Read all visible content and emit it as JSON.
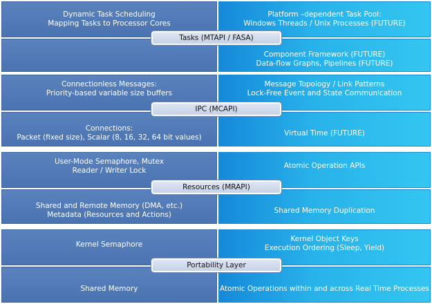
{
  "sections": [
    {
      "label": "Tasks (MTAPI  / FASA)",
      "top_left": [
        "Dynamic Task Scheduling",
        "Mapping Tasks to Processor Cores"
      ],
      "top_right": [
        "Platform –dependent Task Pool:",
        "Windows Threads / Unix Processes (FUTURE)"
      ],
      "bottom_left": [],
      "bottom_right": [
        "Component Framework (FUTURE)",
        "Data-flow Graphs, Pipelines (FUTURE)"
      ]
    },
    {
      "label": "IPC (MCAPI)",
      "top_left": [
        "Connectionless Messages:",
        "Priority-based variable size buffers"
      ],
      "top_right": [
        "Message Topology / Link Patterns",
        "Lock-Free Event and State Communication"
      ],
      "bottom_left": [
        "Connections:",
        "Packet (fixed size), Scalar (8, 16, 32, 64 bit values)"
      ],
      "bottom_right": [
        "Virtual Time (FUTURE)"
      ]
    },
    {
      "label": "Resources (MRAPI)",
      "top_left": [
        "User-Mode Semaphore, Mutex",
        "Reader / Writer Lock"
      ],
      "top_right": [
        "Atomic Operation APIs"
      ],
      "bottom_left": [
        "Shared and Remote Memory (DMA, etc.)",
        "Metadata (Resources and Actions)"
      ],
      "bottom_right": [
        "Shared Memory Duplication"
      ]
    },
    {
      "label": "Portability Layer",
      "top_left": [
        "Kernel Semaphore"
      ],
      "top_right": [
        "Kernel Object Keys",
        "Execution Ordering (Sleep, Yield)"
      ],
      "bottom_left": [
        "Shared Memory"
      ],
      "bottom_right": [
        "Atomic Operations within and across Real Time Processes"
      ]
    }
  ]
}
